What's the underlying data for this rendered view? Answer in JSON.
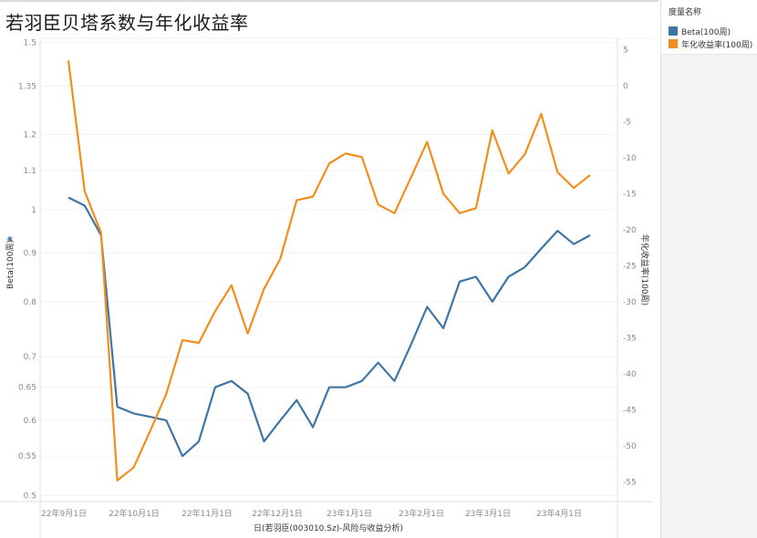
{
  "title": "若羽臣贝塔系数与年化收益率",
  "legend": {
    "title": "度量名称",
    "items": [
      {
        "label": "Beta(100周)",
        "color": "#3e75a6"
      },
      {
        "label": "年化收益率(100周)",
        "color": "#f28e1c"
      }
    ]
  },
  "axes": {
    "x_title": "日(若羽臣(003010.Sz)-风险与收益分析)",
    "left_title": "Beta(100周)",
    "right_title": "年化收益率(100周)",
    "pin_icon": "★"
  },
  "chart_data": {
    "type": "line",
    "title": "若羽臣贝塔系数与年化收益率",
    "xlabel": "日(若羽臣(003010.Sz)-风险与收益分析)",
    "ylabel": "Beta(100周)",
    "y2label": "年化收益率(100周)",
    "x_tick_labels": [
      "22年9月1日",
      "22年10月1日",
      "22年11月1日",
      "22年12月1日",
      "23年1月1日",
      "23年2月1日",
      "23年3月1日",
      "23年4月1日"
    ],
    "y_ticks": [
      1.5,
      1.35,
      1.2,
      1.1,
      1,
      0.9,
      0.8,
      0.7,
      0.65,
      0.6,
      0.55,
      0.5
    ],
    "y_scale": "log",
    "ylim": [
      0.5,
      1.5
    ],
    "y2_ticks": [
      5,
      0,
      -5,
      -10,
      -15,
      -20,
      -25,
      -30,
      -35,
      -40,
      -45,
      -50,
      -55
    ],
    "y2lim": [
      -57,
      6
    ],
    "grid": true,
    "legend_position": "right",
    "series": [
      {
        "name": "Beta(100周)",
        "axis": "left",
        "color": "#3e75a6",
        "values": [
          1.03,
          1.01,
          0.94,
          0.62,
          0.61,
          0.605,
          0.6,
          0.55,
          0.57,
          0.65,
          0.66,
          0.64,
          0.57,
          0.6,
          0.63,
          0.59,
          0.65,
          0.65,
          0.66,
          0.69,
          0.66,
          0.72,
          0.79,
          0.75,
          0.84,
          0.85,
          0.8,
          0.85,
          0.87,
          0.91,
          0.95,
          0.92,
          0.94
        ]
      },
      {
        "name": "年化收益率(100周)",
        "axis": "right",
        "color": "#f28e1c",
        "values": [
          3.5,
          -14.7,
          -20.4,
          -54.8,
          -53.0,
          -48.0,
          -42.8,
          -35.3,
          -35.7,
          -31.3,
          -27.7,
          -34.4,
          -28.2,
          -24.0,
          -15.9,
          -15.4,
          -10.8,
          -9.4,
          -9.9,
          -16.5,
          -17.7,
          -12.8,
          -7.8,
          -15.0,
          -17.7,
          -17.0,
          -6.2,
          -12.2,
          -9.5,
          -3.9,
          -12.0,
          -14.2,
          -12.4
        ]
      }
    ]
  }
}
